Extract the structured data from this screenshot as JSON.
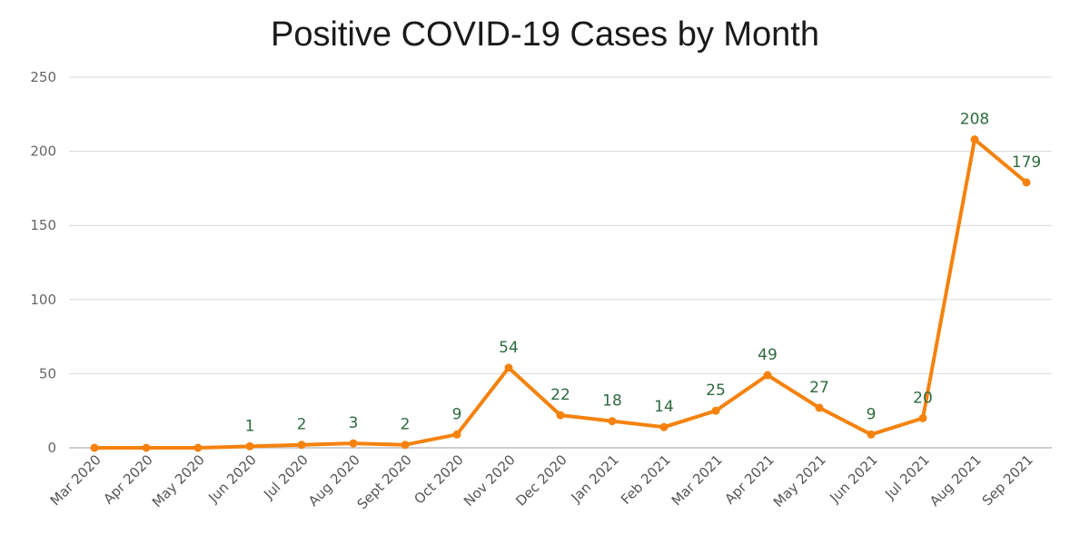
{
  "colors": {
    "line": "#F5820D",
    "label": "#2E6B3F",
    "grid": "#D9D9D9",
    "axis": "#BFBFBF"
  },
  "chart_data": {
    "type": "line",
    "title": "Positive COVID-19 Cases by Month",
    "xlabel": "",
    "ylabel": "",
    "ylim": [
      0,
      250
    ],
    "yticks": [
      0,
      50,
      100,
      150,
      200,
      250
    ],
    "grid": true,
    "categories": [
      "Mar 2020",
      "Apr 2020",
      "May 2020",
      "Jun 2020",
      "Jul 2020",
      "Aug 2020",
      "Sept 2020",
      "Oct 2020",
      "Nov 2020",
      "Dec 2020",
      "Jan 2021",
      "Feb 2021",
      "Mar 2021",
      "Apr 2021",
      "May 2021",
      "Jun 2021",
      "Jul 2021",
      "Aug 2021",
      "Sep 2021"
    ],
    "series": [
      {
        "values": [
          0,
          0,
          0,
          1,
          2,
          3,
          2,
          9,
          54,
          22,
          18,
          14,
          25,
          49,
          27,
          9,
          20,
          208,
          179
        ]
      }
    ],
    "data_labels": [
      "",
      "",
      "",
      "1",
      "2",
      "3",
      "2",
      "9",
      "54",
      "22",
      "18",
      "14",
      "25",
      "49",
      "27",
      "9",
      "20",
      "208",
      "179"
    ]
  }
}
